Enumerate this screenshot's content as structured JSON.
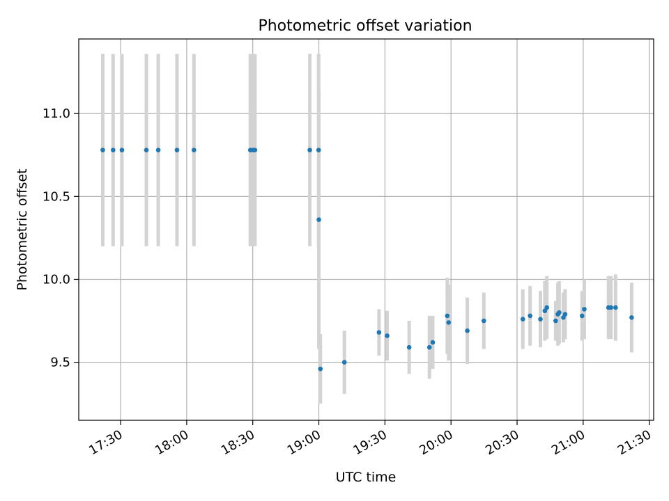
{
  "chart_data": {
    "type": "scatter",
    "title": "Photometric offset variation",
    "xlabel": "UTC time",
    "ylabel": "Photometric offset",
    "x_is_time": true,
    "xlim": [
      "17:11",
      "21:32"
    ],
    "ylim": [
      9.15,
      11.45
    ],
    "x_ticks": [
      "17:30",
      "18:00",
      "18:30",
      "19:00",
      "19:30",
      "20:00",
      "20:30",
      "21:00",
      "21:30"
    ],
    "y_ticks": [
      9.5,
      10.0,
      10.5,
      11.0
    ],
    "y_tick_labels": [
      "9.5",
      "10.0",
      "10.5",
      "11.0"
    ],
    "grid": true,
    "series": [
      {
        "marker_color": "#1f77b4",
        "errorbar_color": "#d3d3d3",
        "points": [
          {
            "x": "17:21:54",
            "y": 10.78,
            "err": 0.58
          },
          {
            "x": "17:26:36",
            "y": 10.78,
            "err": 0.58
          },
          {
            "x": "17:30:36",
            "y": 10.78,
            "err": 0.58
          },
          {
            "x": "17:41:42",
            "y": 10.78,
            "err": 0.58
          },
          {
            "x": "17:47:06",
            "y": 10.78,
            "err": 0.58
          },
          {
            "x": "17:55:36",
            "y": 10.78,
            "err": 0.58
          },
          {
            "x": "18:03:18",
            "y": 10.78,
            "err": 0.58
          },
          {
            "x": "18:28:54",
            "y": 10.78,
            "err": 0.58
          },
          {
            "x": "18:30:06",
            "y": 10.78,
            "err": 0.58
          },
          {
            "x": "18:31:00",
            "y": 10.78,
            "err": 0.58
          },
          {
            "x": "18:55:54",
            "y": 10.78,
            "err": 0.58
          },
          {
            "x": "18:59:54",
            "y": 10.78,
            "err": 0.58
          },
          {
            "x": "19:00:00",
            "y": 10.36,
            "err": 0.78
          },
          {
            "x": "19:00:42",
            "y": 9.46,
            "err": 0.21
          },
          {
            "x": "19:11:36",
            "y": 9.5,
            "err": 0.19
          },
          {
            "x": "19:27:18",
            "y": 9.68,
            "err": 0.14
          },
          {
            "x": "19:31:00",
            "y": 9.66,
            "err": 0.15
          },
          {
            "x": "19:41:00",
            "y": 9.59,
            "err": 0.16
          },
          {
            "x": "19:50:12",
            "y": 9.59,
            "err": 0.19
          },
          {
            "x": "19:51:42",
            "y": 9.62,
            "err": 0.16
          },
          {
            "x": "19:58:18",
            "y": 9.78,
            "err": 0.23
          },
          {
            "x": "19:58:54",
            "y": 9.74,
            "err": 0.23
          },
          {
            "x": "20:07:24",
            "y": 9.69,
            "err": 0.2
          },
          {
            "x": "20:14:54",
            "y": 9.75,
            "err": 0.17
          },
          {
            "x": "20:32:36",
            "y": 9.76,
            "err": 0.18
          },
          {
            "x": "20:35:54",
            "y": 9.78,
            "err": 0.18
          },
          {
            "x": "20:40:36",
            "y": 9.76,
            "err": 0.17
          },
          {
            "x": "20:42:36",
            "y": 9.81,
            "err": 0.18
          },
          {
            "x": "20:43:30",
            "y": 9.83,
            "err": 0.19
          },
          {
            "x": "20:47:30",
            "y": 9.75,
            "err": 0.12
          },
          {
            "x": "20:48:30",
            "y": 9.79,
            "err": 0.19
          },
          {
            "x": "20:49:06",
            "y": 9.8,
            "err": 0.19
          },
          {
            "x": "20:51:00",
            "y": 9.77,
            "err": 0.15
          },
          {
            "x": "20:51:48",
            "y": 9.79,
            "err": 0.15
          },
          {
            "x": "20:59:30",
            "y": 9.78,
            "err": 0.15
          },
          {
            "x": "21:00:30",
            "y": 9.82,
            "err": 0.18
          },
          {
            "x": "21:11:30",
            "y": 9.83,
            "err": 0.19
          },
          {
            "x": "21:12:36",
            "y": 9.83,
            "err": 0.19
          },
          {
            "x": "21:14:42",
            "y": 9.83,
            "err": 0.2
          },
          {
            "x": "21:22:00",
            "y": 9.77,
            "err": 0.21
          }
        ]
      }
    ]
  }
}
